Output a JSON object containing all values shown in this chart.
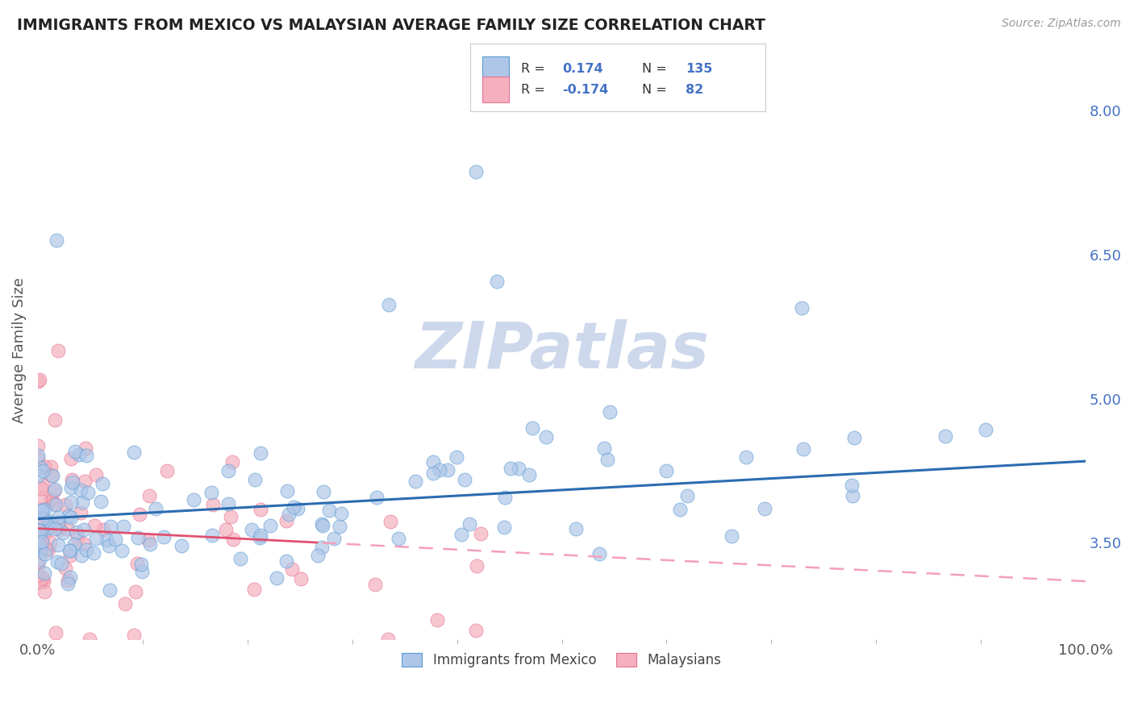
{
  "title": "IMMIGRANTS FROM MEXICO VS MALAYSIAN AVERAGE FAMILY SIZE CORRELATION CHART",
  "source_text": "Source: ZipAtlas.com",
  "ylabel": "Average Family Size",
  "xlim": [
    0.0,
    1.0
  ],
  "ylim": [
    2.5,
    8.5
  ],
  "yticks_right": [
    3.5,
    5.0,
    6.5,
    8.0
  ],
  "xtick_labels": [
    "0.0%",
    "100.0%"
  ],
  "blue_scatter_color": "#aec6e8",
  "blue_edge_color": "#5b9bd5",
  "pink_scatter_color": "#f4b0be",
  "pink_edge_color": "#e87090",
  "blue_line_color": "#2b6cb0",
  "pink_solid_color": "#e05070",
  "pink_dash_color": "#f4a0b8",
  "watermark": "ZIPatlas",
  "watermark_color": "#cdd8ec",
  "background_color": "#ffffff",
  "grid_color": "#b8c8d8",
  "title_color": "#222222",
  "right_axis_color": "#4472c4",
  "legend_label_blue": "Immigrants from Mexico",
  "legend_label_pink": "Malaysians",
  "legend_r_blue": "0.174",
  "legend_n_blue": "135",
  "legend_r_pink": "-0.174",
  "legend_n_pink": "82",
  "blue_intercept": 3.75,
  "blue_slope": 0.6,
  "pink_intercept": 3.65,
  "pink_slope": -0.55,
  "seed": 77
}
